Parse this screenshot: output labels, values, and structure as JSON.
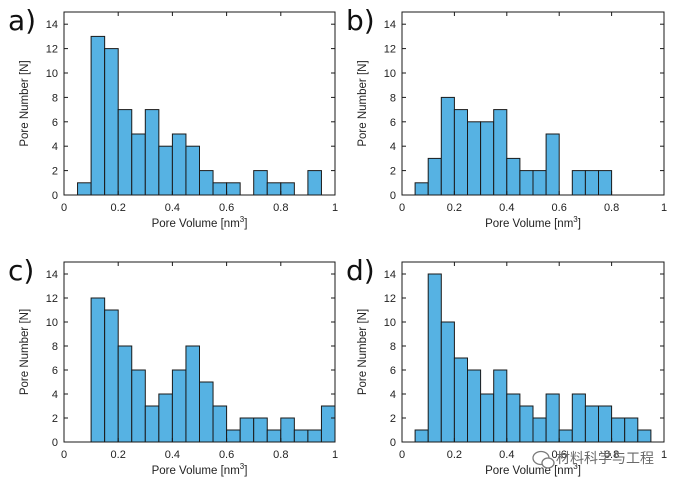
{
  "chart_data": [
    {
      "panel_label": "a)",
      "type": "bar",
      "xlabel": "Pore Volume [nm",
      "xlabel_sup": "3",
      "xlabel_close": "]",
      "ylabel": "Pore Number [N]",
      "xlim": [
        0,
        1
      ],
      "ylim": [
        0,
        15
      ],
      "x_ticks": [
        "0",
        "0.2",
        "0.4",
        "0.6",
        "0.8",
        "1"
      ],
      "y_ticks": [
        "0",
        "2",
        "4",
        "6",
        "8",
        "10",
        "12",
        "14"
      ],
      "bin_width": 0.05,
      "bins": [
        0.075,
        0.125,
        0.175,
        0.225,
        0.275,
        0.325,
        0.375,
        0.425,
        0.475,
        0.525,
        0.575,
        0.625,
        0.725,
        0.775,
        0.825,
        0.925
      ],
      "values": [
        1,
        13,
        12,
        7,
        5,
        7,
        4,
        5,
        4,
        2,
        1,
        1,
        2,
        1,
        1,
        2
      ]
    },
    {
      "panel_label": "b)",
      "type": "bar",
      "xlabel": "Pore Volume [nm",
      "xlabel_sup": "3",
      "xlabel_close": "]",
      "ylabel": "Pore Number [N]",
      "xlim": [
        0,
        1
      ],
      "ylim": [
        0,
        15
      ],
      "x_ticks": [
        "0",
        "0.2",
        "0.4",
        "0.6",
        "0.8",
        "1"
      ],
      "y_ticks": [
        "0",
        "2",
        "4",
        "6",
        "8",
        "10",
        "12",
        "14"
      ],
      "bin_width": 0.05,
      "bins": [
        0.075,
        0.125,
        0.175,
        0.225,
        0.275,
        0.325,
        0.375,
        0.425,
        0.475,
        0.525,
        0.575,
        0.675,
        0.725,
        0.775
      ],
      "values": [
        1,
        3,
        8,
        7,
        6,
        6,
        7,
        3,
        2,
        2,
        5,
        2,
        2,
        2
      ]
    },
    {
      "panel_label": "c)",
      "type": "bar",
      "xlabel": "Pore Volume [nm",
      "xlabel_sup": "3",
      "xlabel_close": "]",
      "ylabel": "Pore Number [N]",
      "xlim": [
        0,
        1
      ],
      "ylim": [
        0,
        15
      ],
      "x_ticks": [
        "0",
        "0.2",
        "0.4",
        "0.6",
        "0.8",
        "1"
      ],
      "y_ticks": [
        "0",
        "2",
        "4",
        "6",
        "8",
        "10",
        "12",
        "14"
      ],
      "bin_width": 0.05,
      "bins": [
        0.125,
        0.175,
        0.225,
        0.275,
        0.325,
        0.375,
        0.425,
        0.475,
        0.525,
        0.575,
        0.625,
        0.675,
        0.725,
        0.775,
        0.825,
        0.875,
        0.925,
        0.975
      ],
      "values": [
        12,
        11,
        8,
        6,
        3,
        4,
        6,
        8,
        5,
        3,
        1,
        2,
        2,
        1,
        2,
        1,
        1,
        3
      ]
    },
    {
      "panel_label": "d)",
      "type": "bar",
      "xlabel": "Pore Volume [nm",
      "xlabel_sup": "3",
      "xlabel_close": "]",
      "ylabel": "Pore Number [N]",
      "xlim": [
        0,
        1
      ],
      "ylim": [
        0,
        15
      ],
      "x_ticks": [
        "0",
        "0.2",
        "0.4",
        "0.6",
        "0.8",
        "1"
      ],
      "y_ticks": [
        "0",
        "2",
        "4",
        "6",
        "8",
        "10",
        "12",
        "14"
      ],
      "bin_width": 0.05,
      "bins": [
        0.075,
        0.125,
        0.175,
        0.225,
        0.275,
        0.325,
        0.375,
        0.425,
        0.475,
        0.525,
        0.575,
        0.625,
        0.675,
        0.725,
        0.775,
        0.825,
        0.875,
        0.925
      ],
      "values": [
        1,
        14,
        10,
        7,
        6,
        4,
        6,
        4,
        3,
        2,
        4,
        1,
        4,
        3,
        3,
        2,
        2,
        1
      ]
    }
  ],
  "watermark": "材料科学与工程",
  "colors": {
    "bar_fill": "#56b2e3",
    "bar_edge": "#1a1a1a",
    "axis": "#1a1a1a"
  }
}
